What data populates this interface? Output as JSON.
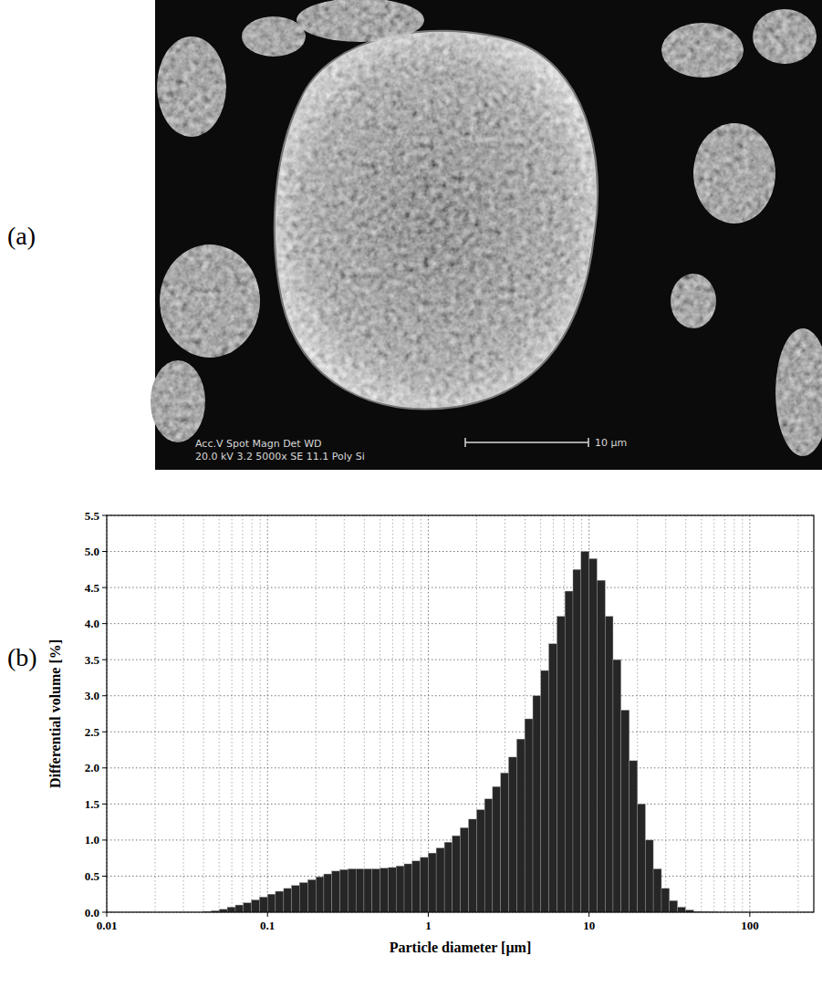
{
  "panel_a": {
    "label": "(a)",
    "sem_info": {
      "header": "Acc.V   Spot Magn    Det   WD",
      "values": "20.0 kV 3.2   5000x    SE    11.1   Poly Si"
    },
    "scale_bar": "10 µm"
  },
  "panel_b": {
    "label": "(b)"
  },
  "chart_data": {
    "type": "histogram",
    "x_label": "Particle diameter [µm]",
    "y_label": "Differential volume [%]",
    "bins": [
      0.0398,
      0.0447,
      0.0501,
      0.0562,
      0.0631,
      0.0708,
      0.0794,
      0.0891,
      0.1,
      0.112,
      0.126,
      0.141,
      0.158,
      0.178,
      0.2,
      0.224,
      0.251,
      0.282,
      0.316,
      0.355,
      0.398,
      0.447,
      0.501,
      0.562,
      0.631,
      0.708,
      0.794,
      0.891,
      1,
      1.12,
      1.26,
      1.41,
      1.58,
      1.78,
      2,
      2.24,
      2.51,
      2.82,
      3.16,
      3.55,
      3.98,
      4.47,
      5.01,
      5.62,
      6.31,
      7.08,
      7.94,
      8.91,
      10,
      11.2,
      12.6,
      14.1,
      15.8,
      17.8,
      20,
      22.4,
      25.1,
      28.2,
      31.6,
      35.5,
      39.8,
      44.7,
      50.1,
      56.2,
      63.1
    ],
    "values": [
      0.01,
      0.02,
      0.04,
      0.07,
      0.1,
      0.13,
      0.17,
      0.21,
      0.25,
      0.29,
      0.33,
      0.37,
      0.41,
      0.45,
      0.49,
      0.53,
      0.57,
      0.59,
      0.6,
      0.6,
      0.6,
      0.6,
      0.61,
      0.62,
      0.64,
      0.67,
      0.71,
      0.76,
      0.82,
      0.89,
      0.97,
      1.06,
      1.17,
      1.29,
      1.42,
      1.57,
      1.74,
      1.93,
      2.15,
      2.4,
      2.68,
      3.0,
      3.35,
      3.72,
      4.1,
      4.45,
      4.75,
      5.0,
      4.9,
      4.6,
      4.1,
      3.5,
      2.8,
      2.1,
      1.5,
      1.0,
      0.6,
      0.33,
      0.16,
      0.07,
      0.03,
      0.01,
      0.005,
      0.002
    ],
    "color": "#262626",
    "log": "x",
    "grid": true,
    "xlim": [
      0.01,
      250
    ],
    "xticks": [
      0.01,
      0.1,
      1,
      10,
      100
    ],
    "ylim": [
      0,
      5.5
    ],
    "yticks": [
      {
        "value": 0,
        "label": "0.0"
      },
      0.5,
      {
        "value": 1,
        "label": "1.0"
      },
      1.5,
      {
        "value": 2,
        "label": "2.0"
      },
      2.5,
      {
        "value": 3,
        "label": "3.0"
      },
      3.5,
      {
        "value": 4,
        "label": "4.0"
      },
      4.5,
      {
        "value": 5,
        "label": "5.0"
      },
      5.5
    ]
  }
}
